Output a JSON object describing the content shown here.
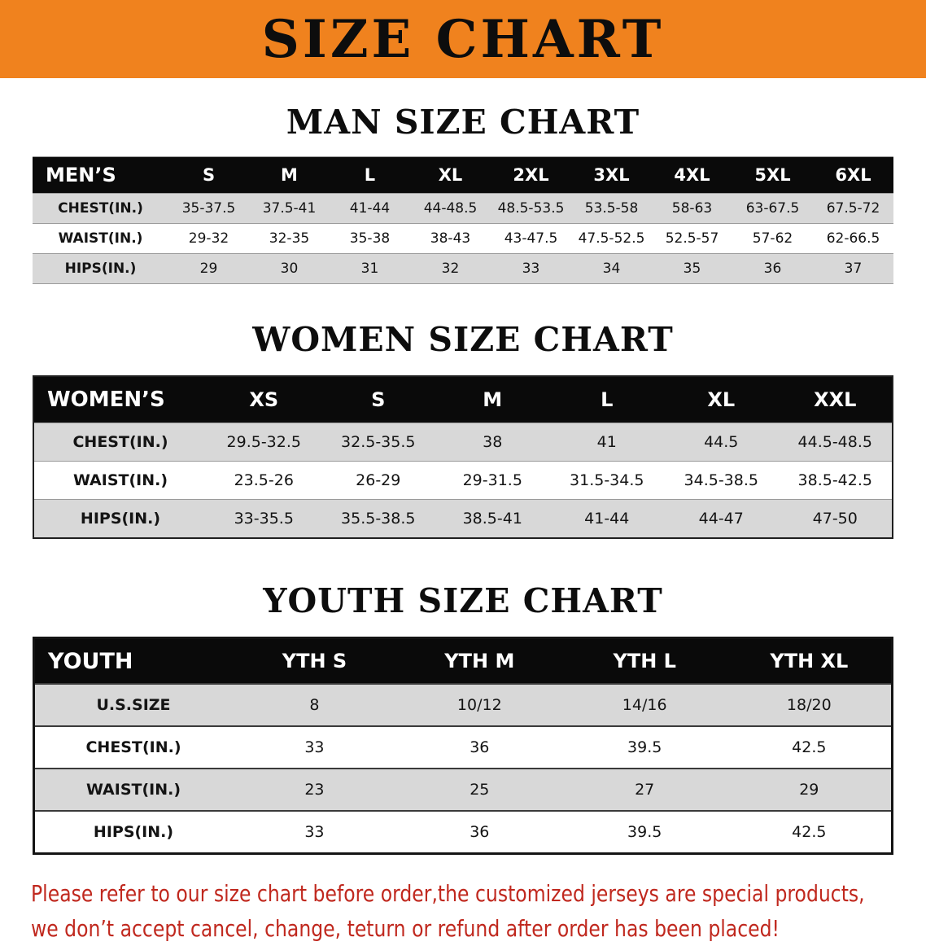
{
  "banner": {
    "title": "SIZE CHART",
    "background_color": "#F0821E"
  },
  "sections": [
    {
      "id": "men",
      "heading": "MAN SIZE CHART",
      "table": {
        "header": [
          "MEN’S",
          "S",
          "M",
          "L",
          "XL",
          "2XL",
          "3XL",
          "4XL",
          "5XL",
          "6XL"
        ],
        "rows": [
          [
            "CHEST(IN.)",
            "35-37.5",
            "37.5-41",
            "41-44",
            "44-48.5",
            "48.5-53.5",
            "53.5-58",
            "58-63",
            "63-67.5",
            "67.5-72"
          ],
          [
            "WAIST(IN.)",
            "29-32",
            "32-35",
            "35-38",
            "38-43",
            "43-47.5",
            "47.5-52.5",
            "52.5-57",
            "57-62",
            "62-66.5"
          ],
          [
            "HIPS(IN.)",
            "29",
            "30",
            "31",
            "32",
            "33",
            "34",
            "35",
            "36",
            "37"
          ]
        ]
      }
    },
    {
      "id": "women",
      "heading": "WOMEN SIZE CHART",
      "table": {
        "header": [
          "WOMEN’S",
          "XS",
          "S",
          "M",
          "L",
          "XL",
          "XXL"
        ],
        "rows": [
          [
            "CHEST(IN.)",
            "29.5-32.5",
            "32.5-35.5",
            "38",
            "41",
            "44.5",
            "44.5-48.5"
          ],
          [
            "WAIST(IN.)",
            "23.5-26",
            "26-29",
            "29-31.5",
            "31.5-34.5",
            "34.5-38.5",
            "38.5-42.5"
          ],
          [
            "HIPS(IN.)",
            "33-35.5",
            "35.5-38.5",
            "38.5-41",
            "41-44",
            "44-47",
            "47-50"
          ]
        ]
      }
    },
    {
      "id": "youth",
      "heading": "YOUTH SIZE CHART",
      "table": {
        "header": [
          "YOUTH",
          "YTH S",
          "YTH M",
          "YTH L",
          "YTH XL"
        ],
        "rows": [
          [
            "U.S.SIZE",
            "8",
            "10/12",
            "14/16",
            "18/20"
          ],
          [
            "CHEST(IN.)",
            "33",
            "36",
            "39.5",
            "42.5"
          ],
          [
            "WAIST(IN.)",
            "23",
            "25",
            "27",
            "29"
          ],
          [
            "HIPS(IN.)",
            "33",
            "36",
            "39.5",
            "42.5"
          ]
        ]
      }
    }
  ],
  "disclaimer": {
    "color": "#C0281E",
    "line1": "Please refer to our size chart before order,the customized jerseys are special products,",
    "line2": "we don’t accept cancel, change, teturn or refund after order has been placed!"
  }
}
